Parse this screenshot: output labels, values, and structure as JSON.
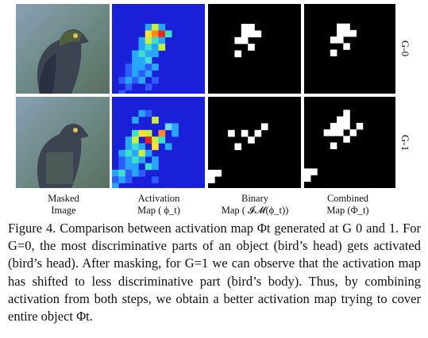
{
  "figure": {
    "row_labels": [
      "G-0",
      "G-1"
    ],
    "columns": [
      {
        "line1": "Masked",
        "line2": "Image"
      },
      {
        "line1": "Activation",
        "line2": "Map ( ϕ_t)"
      },
      {
        "line1": "Binary",
        "line2": "Map ( 𝓘𝓜(ϕ_t))"
      },
      {
        "line1": "Combined",
        "line2": "Map (Φ_t)"
      }
    ],
    "colors": {
      "activation_bg": "#1a1fd8",
      "mask_bg": "#000000",
      "mask_fg": "#ffffff",
      "photo_bg": "#6b7f6a"
    }
  },
  "caption": {
    "label": "Figure 4.",
    "text": "Comparison between activation map Φt generated at G 0 and 1. For G=0, the most discriminative parts of an object (bird’s head) gets activated (bird’s head). After masking, for G=1 we can observe that the activation map has shifted to less discriminative part (bird’s body). Thus, by combining activation from both steps, we obtain a better activation map trying to cover entire object Φt."
  }
}
